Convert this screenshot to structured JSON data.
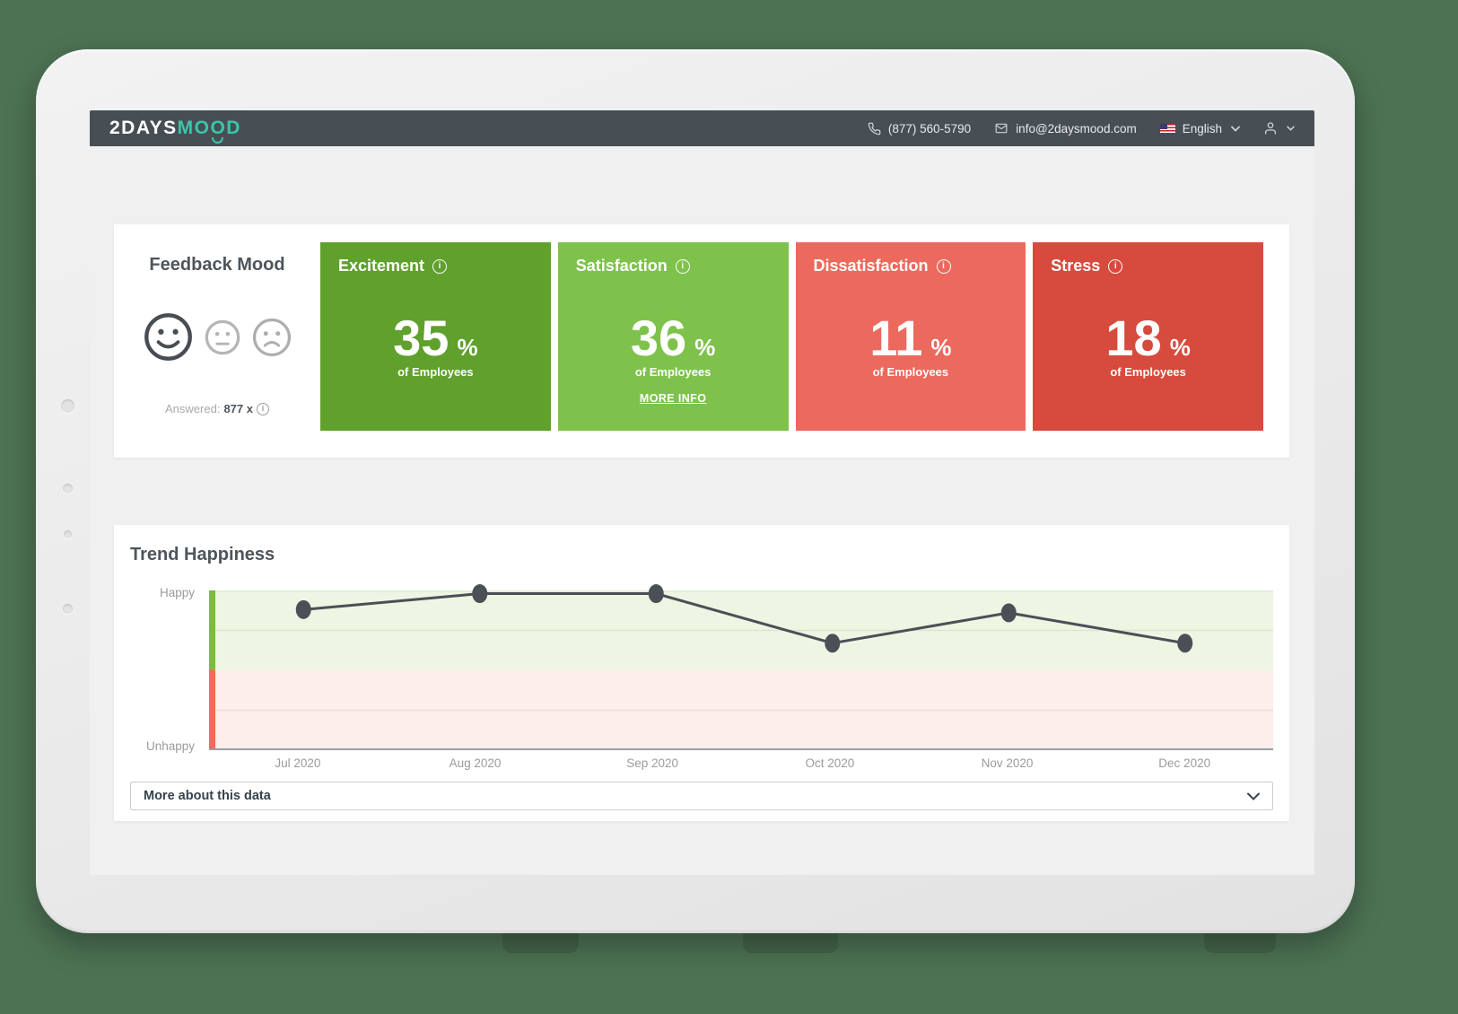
{
  "navbar": {
    "logo_part1": "2DAYS",
    "logo_part2_a": "MO",
    "logo_part2_o": "O",
    "logo_part2_d": "D",
    "phone": "(877) 560-5790",
    "email": "info@2daysmood.com",
    "language": "English"
  },
  "feedback": {
    "title": "Feedback Mood",
    "answered_label": "Answered:",
    "answered_value": "877 x",
    "moods": [
      "happy",
      "neutral",
      "sad"
    ],
    "cards": [
      {
        "label": "Excitement",
        "value": "35",
        "unit": "%",
        "sub": "of Employees",
        "color": "#60a02d"
      },
      {
        "label": "Satisfaction",
        "value": "36",
        "unit": "%",
        "sub": "of Employees",
        "color": "#7ec24c",
        "more_info": "MORE INFO"
      },
      {
        "label": "Dissatisfaction",
        "value": "11",
        "unit": "%",
        "sub": "of Employees",
        "color": "#ec695d"
      },
      {
        "label": "Stress",
        "value": "18",
        "unit": "%",
        "sub": "of Employees",
        "color": "#d64b3d"
      }
    ]
  },
  "trend": {
    "title": "Trend Happiness",
    "more_bar": "More about this data"
  },
  "chart_data": {
    "type": "line",
    "title": "Trend Happiness",
    "x": [
      "Jul 2020",
      "Aug 2020",
      "Sep 2020",
      "Oct 2020",
      "Nov 2020",
      "Dec 2020"
    ],
    "values": [
      88,
      98,
      98,
      67,
      86,
      67
    ],
    "ylim": [
      0,
      100
    ],
    "yaxis": {
      "top_label": "Happy",
      "bottom_label": "Unhappy"
    },
    "zones": [
      {
        "label": "happy zone",
        "range": [
          50,
          100
        ],
        "color": "#eef5e3"
      },
      {
        "label": "unhappy zone",
        "range": [
          0,
          50
        ],
        "color": "#fdedeb"
      }
    ],
    "gridlines": [
      25,
      75
    ],
    "grid_on": true,
    "legend": false
  },
  "icons": {
    "info_glyph": "i",
    "phone": "phone-icon",
    "mail": "mail-icon",
    "flag": "us-flag-icon",
    "chevron": "chevron-down-icon",
    "user": "user-icon"
  },
  "colors": {
    "page_background": "#4d7253",
    "navbar": "#474e54",
    "logo_accent": "#3dc4aa",
    "line": "#4a5056",
    "strip_happy": "#7cbb3f",
    "strip_unhappy": "#f3695b",
    "zone_happy_bg": "#eef5e3",
    "zone_unhappy_bg": "#fdedeb",
    "grid_happy": "#dce5cd",
    "grid_unhappy": "#f3dcd8",
    "axis": "#9aa0a3"
  }
}
